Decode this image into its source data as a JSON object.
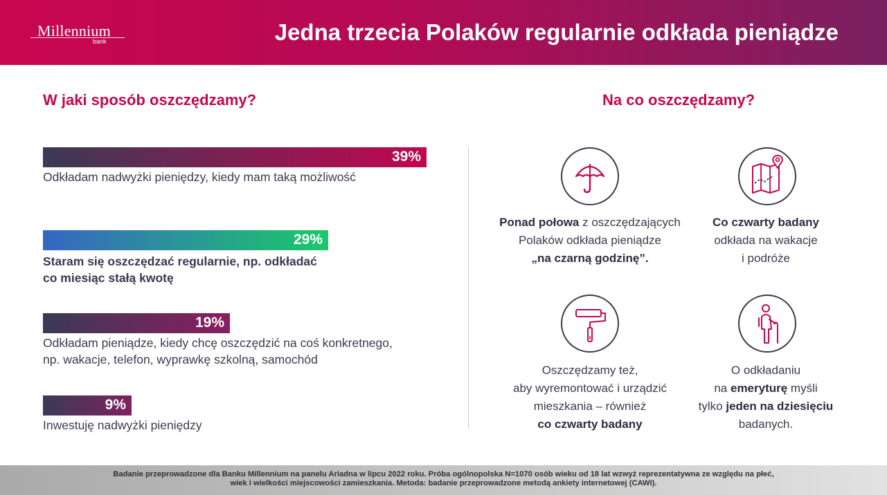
{
  "header": {
    "logo": {
      "word": "Millennium",
      "sub": "bank"
    },
    "title": "Jedna trzecia Polaków regularnie odkłada pieniądze",
    "gradient_colors": [
      "#c8064f",
      "#7a2160"
    ]
  },
  "left": {
    "title": "W jaki sposób oszczędzamy?",
    "bars": [
      {
        "value": "39%",
        "percent": 39,
        "line1": "Odkładam nadwyżki pieniędzy, kiedy mam taką możliwość",
        "line2": "",
        "bold": false,
        "colors": [
          "#3b3a55",
          "#c2064f"
        ]
      },
      {
        "value": "29%",
        "percent": 29,
        "line1": "Staram się oszczędzać regularnie, np. odkładać",
        "line2": "co miesiąc stałą kwotę",
        "bold": true,
        "colors": [
          "#3766c2",
          "#1bc86a"
        ]
      },
      {
        "value": "19%",
        "percent": 19,
        "line1": "Odkładam pieniądze, kiedy chcę oszczędzić na coś konkretnego,",
        "line2": "np. wakacje, telefon, wyprawkę szkolną, samochód",
        "bold": false,
        "colors": [
          "#3b3a55",
          "#8c1d60"
        ]
      },
      {
        "value": "9%",
        "percent": 9,
        "line1": "Inwestuję nadwyżki pieniędzy",
        "line2": "",
        "bold": false,
        "colors": [
          "#3b3a55",
          "#7d2260"
        ]
      }
    ]
  },
  "right": {
    "title": "Na co oszczędzamy?",
    "items": [
      {
        "icon": "umbrella-icon",
        "parts": [
          {
            "text": "Ponad połowa",
            "bold": true
          },
          {
            "text": "  z oszczędzających",
            "bold": false,
            "br": true
          },
          {
            "text": "Polaków odkłada  pieniądze",
            "bold": false,
            "br": true
          },
          {
            "text": "„na czarną  godzinę”.",
            "bold": true
          }
        ]
      },
      {
        "icon": "map-pin-icon",
        "parts": [
          {
            "text": "Co czwarty badany",
            "bold": true,
            "br": true
          },
          {
            "text": "odkłada na wakacje",
            "bold": false,
            "br": true
          },
          {
            "text": "i podróże",
            "bold": false
          }
        ]
      },
      {
        "icon": "paint-roller-icon",
        "parts": [
          {
            "text": "Oszczędzamy też,",
            "bold": false,
            "br": true
          },
          {
            "text": "aby wyremontować i urządzić",
            "bold": false,
            "br": true
          },
          {
            "text": "mieszkania – również",
            "bold": false,
            "br": true
          },
          {
            "text": "co czwarty badany",
            "bold": true
          }
        ]
      },
      {
        "icon": "senior-person-icon",
        "parts": [
          {
            "text": "O odkładaniu",
            "bold": false,
            "br": true
          },
          {
            "text": "na ",
            "bold": false
          },
          {
            "text": "emeryturę",
            "bold": true
          },
          {
            "text": " myśli",
            "bold": false,
            "br": true
          },
          {
            "text": "tylko ",
            "bold": false
          },
          {
            "text": "jeden na dziesięciu",
            "bold": true,
            "br": true
          },
          {
            "text": "badanych.",
            "bold": false
          }
        ]
      }
    ],
    "accent_color": "#c3074f",
    "outline_color": "#3b3a52"
  },
  "footer": {
    "line1": "Badanie przeprowadzone dla Banku Millennium na panelu Ariadna w lipcu 2022 roku. Próba ogólnopolska N=1070 osób wieku od 18 lat wzwyż reprezentatywna ze względu na płeć,",
    "line2": "wiek i wielkości miejscowości zamieszkania. Metoda: badanie przeprowadzone metodą ankiety internetowej (CAWI)."
  }
}
